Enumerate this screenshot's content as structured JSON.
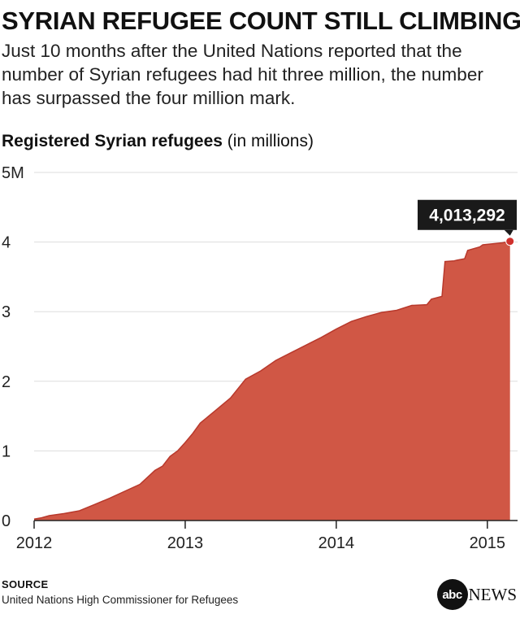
{
  "headline": "SYRIAN REFUGEE COUNT STILL CLIMBING",
  "dek": "Just 10 months after the United Nations reported that the number of Syrian refugees had hit three million, the number has surpassed the four million mark.",
  "chart_heading": {
    "bold": "Registered Syrian refugees",
    "rest": " (in millions)"
  },
  "chart_data": {
    "type": "area",
    "title": "Registered Syrian refugees",
    "ylabel": "(in millions)",
    "xlabel": "",
    "x_range": [
      2012.0,
      2015.2
    ],
    "ylim": [
      0,
      5
    ],
    "y_ticks": [
      {
        "value": 0,
        "label": "0"
      },
      {
        "value": 1,
        "label": "1"
      },
      {
        "value": 2,
        "label": "2"
      },
      {
        "value": 3,
        "label": "3"
      },
      {
        "value": 4,
        "label": "4"
      },
      {
        "value": 5,
        "label": "5M"
      }
    ],
    "x_ticks": [
      {
        "value": 2012,
        "label": "2012"
      },
      {
        "value": 2013,
        "label": "2013"
      },
      {
        "value": 2014,
        "label": "2014"
      },
      {
        "value": 2015,
        "label": "2015"
      }
    ],
    "grid": true,
    "color": "#d05745",
    "line_color": "#b8392c",
    "series": [
      {
        "name": "Registered Syrian refugees (millions)",
        "x": [
          2012.0,
          2012.05,
          2012.1,
          2012.2,
          2012.3,
          2012.4,
          2012.5,
          2012.6,
          2012.7,
          2012.8,
          2012.85,
          2012.9,
          2012.95,
          2013.0,
          2013.05,
          2013.1,
          2013.2,
          2013.3,
          2013.4,
          2013.5,
          2013.6,
          2013.7,
          2013.8,
          2013.9,
          2014.0,
          2014.1,
          2014.2,
          2014.3,
          2014.4,
          2014.5,
          2014.6,
          2014.63,
          2014.7,
          2014.72,
          2014.78,
          2014.8,
          2014.85,
          2014.87,
          2014.95,
          2014.97,
          2015.1,
          2015.15
        ],
        "y": [
          0.02,
          0.04,
          0.07,
          0.1,
          0.14,
          0.23,
          0.32,
          0.42,
          0.52,
          0.72,
          0.78,
          0.92,
          1.0,
          1.12,
          1.25,
          1.4,
          1.58,
          1.76,
          2.03,
          2.15,
          2.3,
          2.41,
          2.52,
          2.63,
          2.75,
          2.86,
          2.93,
          2.99,
          3.02,
          3.09,
          3.1,
          3.18,
          3.22,
          3.72,
          3.73,
          3.74,
          3.76,
          3.88,
          3.93,
          3.96,
          3.99,
          4.01
        ]
      }
    ],
    "annotation": {
      "x": 2015.15,
      "y": 4.01,
      "label": "4,013,292"
    }
  },
  "source": {
    "label": "SOURCE",
    "text": "United Nations High Commissioner for Refugees"
  },
  "logo": {
    "mark": "abc",
    "word": "NEWS"
  }
}
